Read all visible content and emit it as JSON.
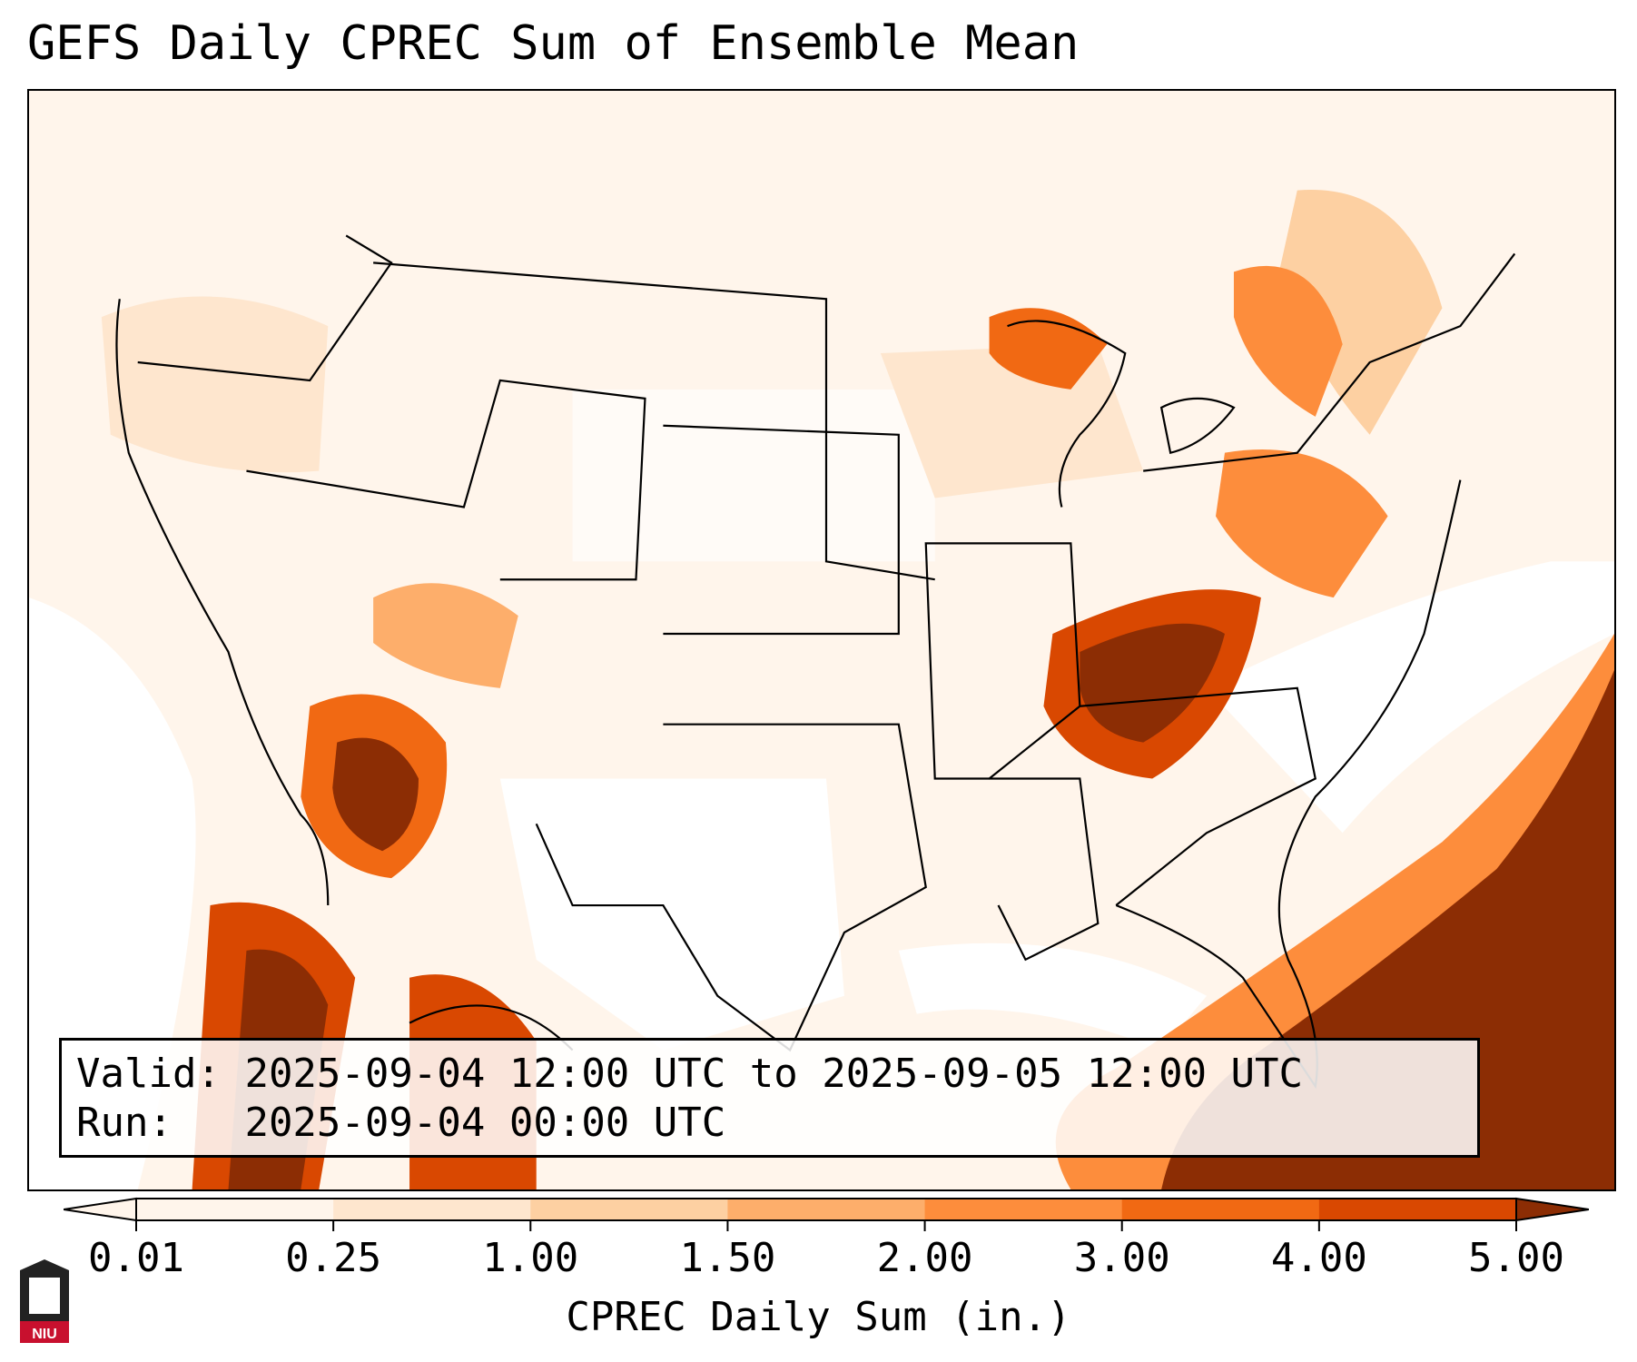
{
  "title": "GEFS Daily CPREC Sum of Ensemble Mean",
  "info": {
    "valid_label": "Valid:",
    "valid_value": "2025-09-04 12:00 UTC to 2025-09-05 12:00 UTC",
    "run_label": "Run:",
    "run_value": "2025-09-04 00:00 UTC"
  },
  "colorbar": {
    "label": "CPREC Daily Sum (in.)",
    "ticks": [
      "0.01",
      "0.25",
      "1.00",
      "1.50",
      "2.00",
      "3.00",
      "4.00",
      "5.00"
    ],
    "colors": [
      "#fff5eb",
      "#fee6ce",
      "#fdd0a2",
      "#fdae6b",
      "#fd8d3c",
      "#f16913",
      "#d94801",
      "#8c2d04"
    ],
    "extend": "both"
  },
  "map": {
    "region": "Continental United States",
    "field": "ensemble mean convective precipitation",
    "heavy_areas": [
      "Southwest Arizona / Sonora",
      "Ohio Valley / Kentucky / Tennessee",
      "Western Atlantic east of Florida",
      "Gulf of California coast",
      "Upper Michigan",
      "Western New York / Pennsylvania"
    ]
  },
  "logo": {
    "text": "NIU",
    "accent": "#c8102e"
  }
}
